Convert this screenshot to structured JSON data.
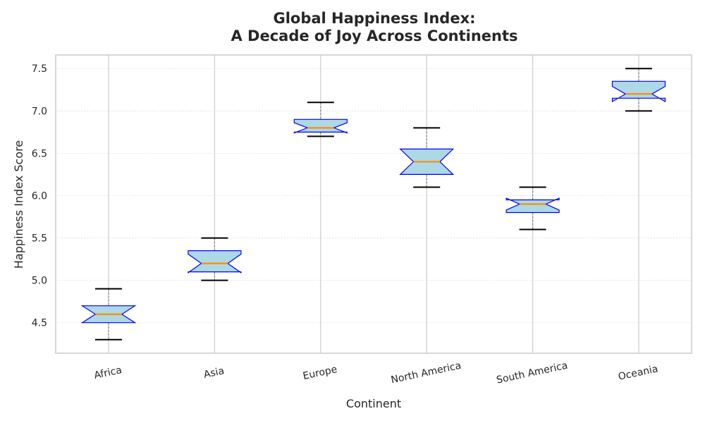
{
  "chart_data": {
    "type": "box",
    "title": "Global Happiness Index:\nA Decade of Joy Across Continents",
    "xlabel": "Continent",
    "ylabel": "Happiness Index Score",
    "ylim": [
      4.14,
      7.66
    ],
    "yticks": [
      "4.5",
      "5.0",
      "5.5",
      "6.0",
      "6.5",
      "7.0",
      "7.5"
    ],
    "grid": true,
    "notched": true,
    "colors": {
      "box_fill": "#add8e6",
      "box_edge": "#0000ff",
      "median": "#ff8c00",
      "whisker": "#808080",
      "cap": "#000000",
      "grid": "#dddddd",
      "spine": "#cccccc"
    },
    "categories": [
      "Africa",
      "Asia",
      "Europe",
      "North America",
      "South America",
      "Oceania"
    ],
    "boxes": [
      {
        "min": 4.3,
        "q1": 4.5,
        "median": 4.6,
        "q3": 4.7,
        "max": 4.9,
        "notch_low": 4.5,
        "notch_high": 4.7
      },
      {
        "min": 5.0,
        "q1": 5.1,
        "median": 5.2,
        "q3": 5.35,
        "max": 5.5,
        "notch_low": 5.09,
        "notch_high": 5.31
      },
      {
        "min": 6.7,
        "q1": 6.75,
        "median": 6.8,
        "q3": 6.9,
        "max": 7.1,
        "notch_low": 6.74,
        "notch_high": 6.86
      },
      {
        "min": 6.1,
        "q1": 6.25,
        "median": 6.4,
        "q3": 6.55,
        "max": 6.8,
        "notch_low": 6.25,
        "notch_high": 6.55
      },
      {
        "min": 5.6,
        "q1": 5.8,
        "median": 5.9,
        "q3": 5.95,
        "max": 6.1,
        "notch_low": 5.83,
        "notch_high": 5.97
      },
      {
        "min": 7.0,
        "q1": 7.15,
        "median": 7.2,
        "q3": 7.35,
        "max": 7.5,
        "notch_low": 7.11,
        "notch_high": 7.29
      }
    ]
  }
}
